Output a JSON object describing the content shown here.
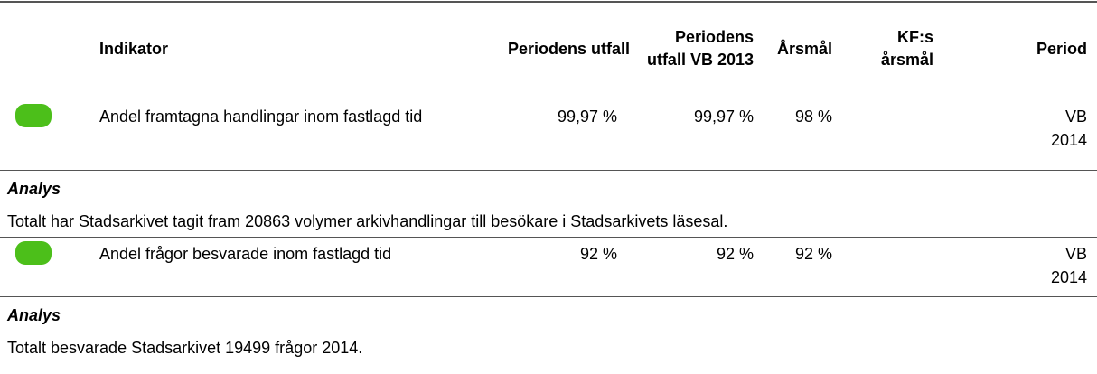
{
  "table": {
    "header": [
      "Indikator",
      "Periodens utfall",
      "Periodens utfall VB 2013",
      "Årsmål",
      "KF:s årsmål",
      "Period"
    ],
    "rows": [
      {
        "indicator": "Andel framtagna handlingar inom fastlagd tid",
        "values": [
          "99,97 %",
          "99,97 %",
          "98 %",
          ""
        ],
        "period": "VB 2014",
        "analysis_label": "Analys",
        "analysis": "Totalt har Stadsarkivet tagit fram 20863 volymer arkivhandlingar till besökare i Stadsarkivets läsesal."
      },
      {
        "indicator": "Andel frågor besvarade inom fastlagd tid",
        "values": [
          "92 %",
          "92 %",
          "92 %",
          ""
        ],
        "period": "VB 2014",
        "analysis_label": "Analys",
        "analysis": "Totalt besvarade Stadsarkivet 19499 frågor 2014."
      }
    ]
  }
}
